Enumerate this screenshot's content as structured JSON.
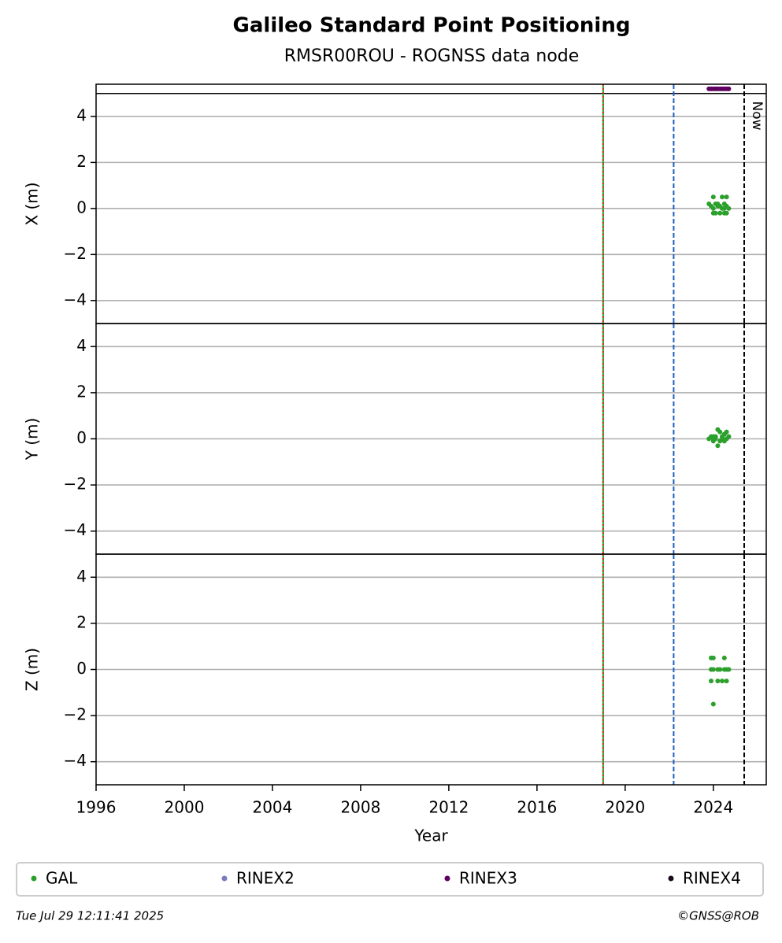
{
  "chart_data": [
    {
      "type": "scatter",
      "title": "Galileo Standard Point Positioning",
      "subtitle": "RMSR00ROU - ROGNSS data node",
      "ylabel": "X (m)",
      "xlim": [
        1996,
        2026.4
      ],
      "ylim": [
        -5,
        5.4
      ],
      "yticks": [
        {
          "value": -4,
          "label": "−4"
        },
        {
          "value": -2,
          "label": "−2"
        },
        0,
        2,
        4
      ],
      "grid": true,
      "hlines": [
        5
      ],
      "vlines": [
        {
          "x": 2019.0,
          "color": "#2ca02c"
        },
        {
          "x": 2019.0,
          "color": "#d62728",
          "dash": "2,3"
        },
        {
          "x": 2022.2,
          "color": "#1f5fbf",
          "dash": "6,3"
        },
        {
          "x": 2025.4,
          "color": "#000000",
          "dash": "6,3",
          "label": "Now"
        }
      ],
      "series": [
        {
          "name": "GAL",
          "color": "#2ca02c",
          "x": [
            2023.8,
            2023.9,
            2024.0,
            2024.0,
            2024.1,
            2024.2,
            2024.2,
            2024.3,
            2024.4,
            2024.4,
            2024.5,
            2024.5,
            2024.6,
            2024.6,
            2024.7,
            2024.1,
            2024.3,
            2024.5,
            2024.6,
            2024.0
          ],
          "y": [
            0.2,
            0.1,
            0.0,
            0.5,
            -0.2,
            0.2,
            0.1,
            -0.2,
            0.5,
            0.0,
            0.2,
            -0.2,
            0.1,
            0.5,
            0.0,
            0.2,
            0.1,
            0.0,
            -0.2,
            -0.2
          ]
        },
        {
          "name": "RINEX2",
          "color": "#7b7bbf",
          "x": [],
          "y": []
        },
        {
          "name": "RINEX3",
          "color": "#5e0060",
          "x": [
            2023.8,
            2023.9,
            2024.0,
            2024.1,
            2024.2,
            2024.3,
            2024.4,
            2024.5,
            2024.6,
            2024.7
          ],
          "y": [
            5.2,
            5.2,
            5.2,
            5.2,
            5.2,
            5.2,
            5.2,
            5.2,
            5.2,
            5.2
          ]
        },
        {
          "name": "RINEX4",
          "color": "#1a0a1a",
          "x": [],
          "y": []
        }
      ]
    },
    {
      "type": "scatter",
      "ylabel": "Y (m)",
      "xlim": [
        1996,
        2026.4
      ],
      "ylim": [
        -5,
        5
      ],
      "yticks": [
        {
          "value": -4,
          "label": "−4"
        },
        {
          "value": -2,
          "label": "−2"
        },
        0,
        2,
        4
      ],
      "grid": true,
      "vlines": [
        {
          "x": 2019.0,
          "color": "#2ca02c"
        },
        {
          "x": 2019.0,
          "color": "#d62728",
          "dash": "2,3"
        },
        {
          "x": 2022.2,
          "color": "#1f5fbf",
          "dash": "6,3"
        },
        {
          "x": 2025.4,
          "color": "#000000",
          "dash": "6,3"
        }
      ],
      "series": [
        {
          "name": "GAL",
          "color": "#2ca02c",
          "x": [
            2023.8,
            2023.9,
            2024.0,
            2024.0,
            2024.1,
            2024.2,
            2024.2,
            2024.3,
            2024.4,
            2024.4,
            2024.5,
            2024.5,
            2024.6,
            2024.6,
            2024.7,
            2024.1,
            2024.3,
            2024.5,
            2024.6,
            2024.0
          ],
          "y": [
            0.0,
            0.1,
            -0.1,
            0.0,
            0.1,
            -0.3,
            0.4,
            0.3,
            0.0,
            0.1,
            0.2,
            -0.1,
            0.0,
            0.3,
            0.1,
            0.0,
            -0.1,
            0.2,
            0.0,
            0.1
          ]
        }
      ]
    },
    {
      "type": "scatter",
      "ylabel": "Z (m)",
      "xlabel": "Year",
      "xlim": [
        1996,
        2026.4
      ],
      "ylim": [
        -5,
        5
      ],
      "xticks": [
        1996,
        2000,
        2004,
        2008,
        2012,
        2016,
        2020,
        2024
      ],
      "yticks": [
        {
          "value": -4,
          "label": "−4"
        },
        {
          "value": -2,
          "label": "−2"
        },
        0,
        2,
        4
      ],
      "grid": true,
      "vlines": [
        {
          "x": 2019.0,
          "color": "#2ca02c"
        },
        {
          "x": 2019.0,
          "color": "#d62728",
          "dash": "2,3"
        },
        {
          "x": 2022.2,
          "color": "#1f5fbf",
          "dash": "6,3"
        },
        {
          "x": 2025.4,
          "color": "#000000",
          "dash": "6,3"
        }
      ],
      "series": [
        {
          "name": "GAL",
          "color": "#2ca02c",
          "x": [
            2023.9,
            2023.9,
            2023.9,
            2024.0,
            2024.0,
            2024.0,
            2024.2,
            2024.2,
            2024.3,
            2024.4,
            2024.5,
            2024.5,
            2024.6,
            2024.6,
            2024.7
          ],
          "y": [
            0.5,
            0.0,
            -0.5,
            0.0,
            -1.5,
            0.5,
            0.0,
            -0.5,
            0.0,
            -0.5,
            0.0,
            0.5,
            -0.5,
            0.0,
            0.0
          ]
        }
      ]
    }
  ],
  "footer": {
    "timestamp": "Tue Jul 29 12:11:41 2025",
    "credit": "©GNSS@ROB"
  }
}
